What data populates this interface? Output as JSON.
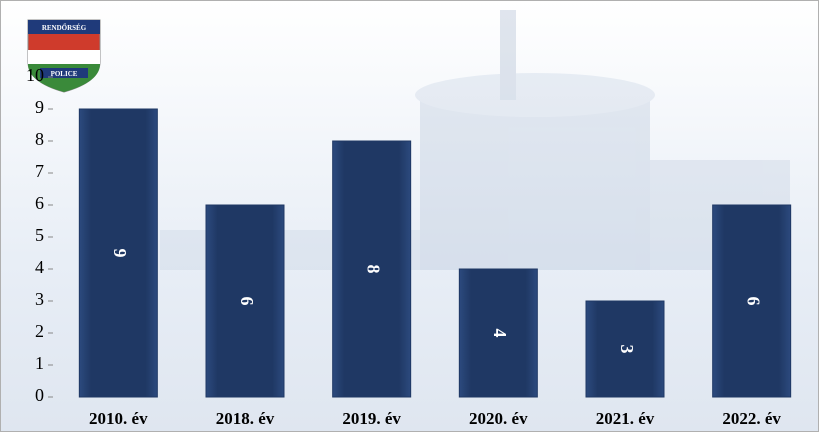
{
  "chart_data": {
    "type": "bar",
    "logo_texts": [
      "RENDŐRSÉG",
      "POLICE"
    ],
    "categories": [
      "2010. év",
      "2018. év",
      "2019. év",
      "2020. év",
      "2021. év",
      "2022. év"
    ],
    "values": [
      9,
      6,
      8,
      4,
      3,
      6
    ],
    "color": "#1f3864",
    "ylim": [
      0,
      10
    ],
    "yticks": [
      0,
      1,
      2,
      3,
      4,
      5,
      6,
      7,
      8,
      9,
      10
    ]
  }
}
